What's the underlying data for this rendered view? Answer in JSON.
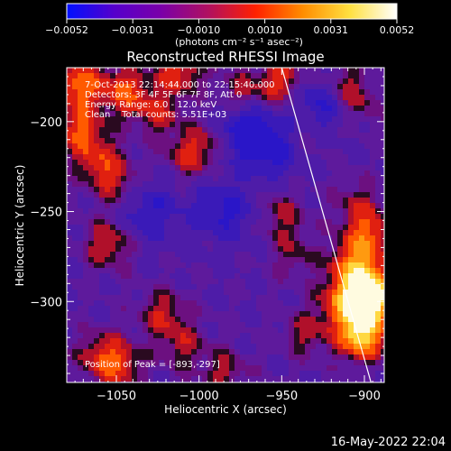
{
  "colorbar": {
    "ticks": [
      "-0.0052",
      "-0.0031",
      "-0.0010",
      "0.0010",
      "0.0031",
      "0.0052"
    ],
    "units": "(photons cm⁻² s⁻¹ asec⁻²)",
    "colormap": [
      "#0010ff",
      "#5500cc",
      "#7a00a8",
      "#b01060",
      "#ff2000",
      "#ff8c00",
      "#ffe040",
      "#ffffff"
    ]
  },
  "chart_data": {
    "type": "heatmap",
    "title": "Reconstructed RHESSI Image",
    "xlabel": "Heliocentric X (arcsec)",
    "ylabel": "Heliocentric Y (arcsec)",
    "xlim": [
      -1080,
      -888
    ],
    "ylim": [
      -345,
      -170
    ],
    "xticks": [
      -1050,
      -1000,
      -950,
      -900
    ],
    "yticks": [
      -200,
      -250,
      -300
    ],
    "xtick_labels": [
      "−1050",
      "−1000",
      "−950",
      "−900"
    ],
    "ytick_labels": [
      "−200",
      "−250",
      "−300"
    ],
    "annotations": [
      "7-Oct-2013 22:14:44.000 to 22:15:40.000",
      "Detectors: 3F 4F 5F 6F 7F 8F, Att 0",
      "Energy Range: 6.0 - 12.0 keV",
      "Clean    Total counts: 5.51E+03"
    ],
    "peak_label": "Position of Peak = [-893,-297]",
    "peak": [
      -893,
      -297
    ],
    "limb_line": [
      [
        -950,
        -170
      ],
      [
        -896,
        -345
      ]
    ],
    "blobs": [
      {
        "x": -1072,
        "y": -180,
        "v": 0.55
      },
      {
        "x": -1045,
        "y": -183,
        "v": 0.45
      },
      {
        "x": -1072,
        "y": -205,
        "v": 0.45
      },
      {
        "x": -1060,
        "y": -222,
        "v": 0.35
      },
      {
        "x": -1050,
        "y": -235,
        "v": 0.25
      },
      {
        "x": -1005,
        "y": -218,
        "v": 0.35
      },
      {
        "x": -988,
        "y": -208,
        "v": 0.3
      },
      {
        "x": -975,
        "y": -185,
        "v": 0.3
      },
      {
        "x": -950,
        "y": -178,
        "v": 0.4
      },
      {
        "x": -1025,
        "y": -195,
        "v": 0.3
      },
      {
        "x": -1012,
        "y": -172,
        "v": 0.4
      },
      {
        "x": -1055,
        "y": -268,
        "v": 0.35
      },
      {
        "x": -1060,
        "y": -330,
        "v": 0.3
      },
      {
        "x": -1048,
        "y": -335,
        "v": 0.35
      },
      {
        "x": -1022,
        "y": -307,
        "v": 0.3
      },
      {
        "x": -1010,
        "y": -325,
        "v": 0.25
      },
      {
        "x": -985,
        "y": -340,
        "v": 0.25
      },
      {
        "x": -950,
        "y": -252,
        "v": 0.25
      },
      {
        "x": -942,
        "y": -275,
        "v": 0.2
      },
      {
        "x": -935,
        "y": -318,
        "v": 0.25
      },
      {
        "x": -912,
        "y": -300,
        "v": 0.55
      },
      {
        "x": -902,
        "y": -318,
        "v": 0.85
      },
      {
        "x": -896,
        "y": -297,
        "v": 1.0
      },
      {
        "x": -905,
        "y": -280,
        "v": 0.6
      },
      {
        "x": -898,
        "y": -262,
        "v": 0.45
      },
      {
        "x": -935,
        "y": -205,
        "v": 0.2
      },
      {
        "x": -905,
        "y": -190,
        "v": 0.25
      },
      {
        "x": -915,
        "y": -180,
        "v": 0.3
      },
      {
        "x": -905,
        "y": -245,
        "v": 0.2
      }
    ],
    "lows": [
      {
        "x": -975,
        "y": -205,
        "v": 0.55
      },
      {
        "x": -925,
        "y": -190,
        "v": 0.45
      },
      {
        "x": -955,
        "y": -215,
        "v": 0.35
      },
      {
        "x": -985,
        "y": -250,
        "v": 0.35
      },
      {
        "x": -1030,
        "y": -250,
        "v": 0.3
      }
    ],
    "color_range": [
      -0.0052,
      0.0052
    ]
  },
  "footer": {
    "timestamp": "16-May-2022 22:04"
  }
}
